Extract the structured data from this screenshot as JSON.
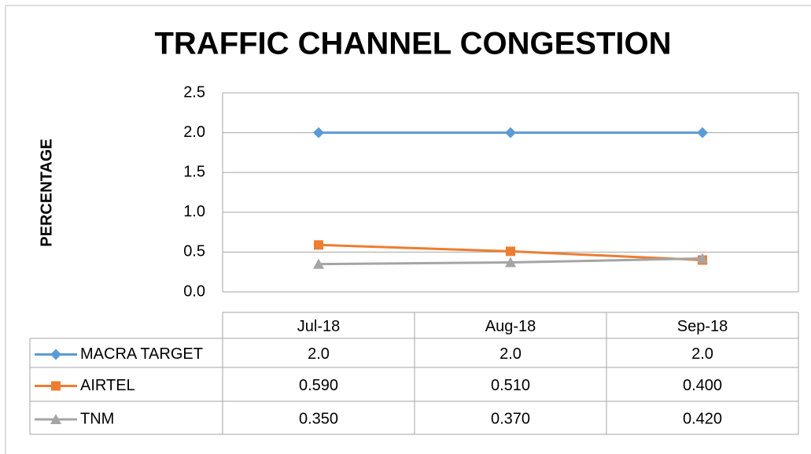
{
  "chart_data": {
    "type": "line",
    "title": "TRAFFIC CHANNEL CONGESTION",
    "y_label": "PERCENTAGE",
    "categories": [
      "Jul-18",
      "Aug-18",
      "Sep-18"
    ],
    "series": [
      {
        "name": "MACRA TARGET",
        "color": "#5b9bd5",
        "marker": "diamond",
        "values": [
          2,
          2,
          2
        ],
        "value_labels": [
          "2.0",
          "2.0",
          "2.0"
        ]
      },
      {
        "name": "AIRTEL",
        "color": "#ed7d31",
        "marker": "square",
        "values": [
          0.59,
          0.51,
          0.4
        ],
        "value_labels": [
          "0.590",
          "0.510",
          "0.400"
        ]
      },
      {
        "name": "TNM",
        "color": "#a5a5a5",
        "marker": "triangle",
        "values": [
          0.35,
          0.37,
          0.42
        ],
        "value_labels": [
          "0.350",
          "0.370",
          "0.420"
        ]
      }
    ],
    "ylim": [
      0,
      2.5
    ],
    "yticks": [
      {
        "value": 0,
        "label": "0.0"
      },
      {
        "value": 0.5,
        "label": "0.5"
      },
      {
        "value": 1,
        "label": "1.0"
      },
      {
        "value": 1.5,
        "label": "1.5"
      },
      {
        "value": 2,
        "label": "2.0"
      },
      {
        "value": 2.5,
        "label": "2.5"
      }
    ],
    "grid": true
  }
}
